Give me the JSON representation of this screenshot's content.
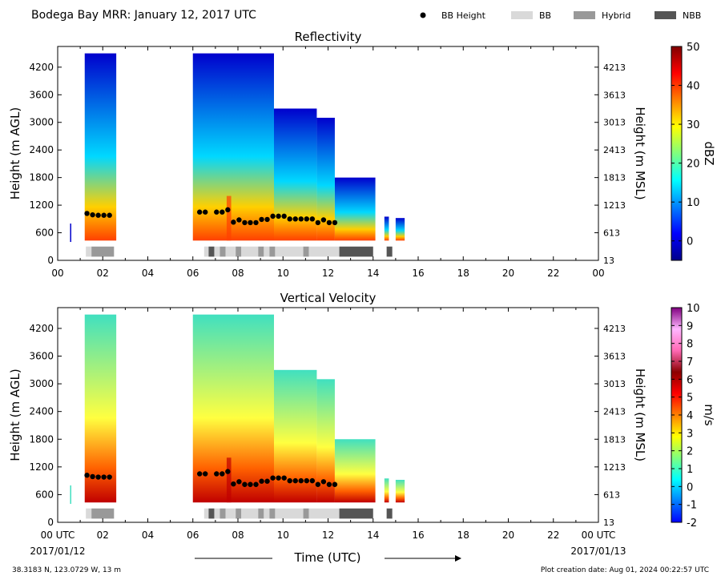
{
  "header": {
    "title": "Bodega Bay MRR:  January 12, 2017 UTC",
    "legend": [
      {
        "label": "BB Height",
        "kind": "dot",
        "color": "#000000"
      },
      {
        "label": "BB",
        "kind": "box",
        "color": "#d9d9d9"
      },
      {
        "label": "Hybrid",
        "kind": "box",
        "color": "#999999"
      },
      {
        "label": "NBB",
        "kind": "box",
        "color": "#555555"
      }
    ]
  },
  "footer": {
    "location": "38.3183 N, 123.0729 W, 13 m",
    "creation": "Plot creation date: Aug 01, 2024 00:22:57 UTC",
    "xlabel": "Time (UTC)",
    "start_date": "2017/01/12",
    "end_date": "2017/01/13"
  },
  "chart_data": [
    {
      "type": "heatmap",
      "title": "Reflectivity",
      "ylabel": "Height (m AGL)",
      "ylabel_right": "Height (m MSL)",
      "yticks": [
        0,
        600,
        1200,
        1800,
        2400,
        3000,
        3600,
        4200
      ],
      "yticks_right": [
        "13",
        "613",
        "1213",
        "1813",
        "2413",
        "3013",
        "3613",
        "4213"
      ],
      "xticks": [
        "00",
        "02",
        "04",
        "06",
        "08",
        "10",
        "12",
        "14",
        "16",
        "18",
        "20",
        "22",
        "00"
      ],
      "xlim": [
        0,
        24
      ],
      "ylim": [
        0,
        4650
      ],
      "colorbar": {
        "label": "dBZ",
        "min": -5,
        "max": 50,
        "ticks": [
          0,
          10,
          20,
          30,
          40,
          50
        ],
        "stops": [
          "#00008b",
          "#0000ff",
          "#0080ff",
          "#00ffff",
          "#7fff7f",
          "#ffff00",
          "#ff8000",
          "#ff0000",
          "#800000"
        ]
      },
      "colors": {
        "low": "#0000cd",
        "mid": "#00d8ff",
        "high": "#ffd000",
        "peak": "#ff4000"
      }
    },
    {
      "type": "heatmap",
      "title": "Vertical Velocity",
      "ylabel": "Height (m AGL)",
      "ylabel_right": "Height (m MSL)",
      "yticks": [
        0,
        600,
        1200,
        1800,
        2400,
        3000,
        3600,
        4200
      ],
      "yticks_right": [
        "13",
        "613",
        "1213",
        "1813",
        "2413",
        "3013",
        "3613",
        "4213"
      ],
      "xticks": [
        "00 UTC",
        "02",
        "04",
        "06",
        "08",
        "10",
        "12",
        "14",
        "16",
        "18",
        "20",
        "22",
        "00 UTC"
      ],
      "xlim": [
        0,
        24
      ],
      "ylim": [
        0,
        4650
      ],
      "colorbar": {
        "label": "m/s",
        "min": -2,
        "max": 10,
        "ticks": [
          -2,
          -1,
          0,
          1,
          2,
          3,
          4,
          5,
          6,
          7,
          8,
          9,
          10
        ],
        "stops": [
          "#0000ff",
          "#0080ff",
          "#00ffff",
          "#7fff7f",
          "#ffff00",
          "#ff8000",
          "#ff0000",
          "#8b0000",
          "#ff69b4",
          "#ffb6ff",
          "#800080"
        ]
      },
      "colors": {
        "low": "#40e0c0",
        "mid": "#ffff40",
        "high": "#ff6000",
        "peak": "#c00000"
      }
    }
  ],
  "bb_height": {
    "hours": [
      1.3,
      1.55,
      1.8,
      2.05,
      2.3,
      6.3,
      6.55,
      7.05,
      7.3,
      7.55,
      7.8,
      8.05,
      8.3,
      8.55,
      8.8,
      9.05,
      9.3,
      9.55,
      9.8,
      10.05,
      10.3,
      10.55,
      10.8,
      11.05,
      11.3,
      11.55,
      11.8,
      12.05,
      12.3
    ],
    "heights": [
      1020,
      990,
      980,
      980,
      980,
      1050,
      1050,
      1050,
      1050,
      1100,
      830,
      880,
      820,
      820,
      820,
      890,
      890,
      960,
      960,
      960,
      900,
      900,
      900,
      900,
      900,
      820,
      880,
      820,
      820
    ]
  },
  "bb_strip": [
    {
      "start": 1.25,
      "end": 1.5,
      "kind": "BB"
    },
    {
      "start": 1.5,
      "end": 2.5,
      "kind": "Hybrid"
    },
    {
      "start": 6.5,
      "end": 6.7,
      "kind": "BB"
    },
    {
      "start": 6.7,
      "end": 6.95,
      "kind": "NBB"
    },
    {
      "start": 6.95,
      "end": 7.2,
      "kind": "BB"
    },
    {
      "start": 7.2,
      "end": 7.45,
      "kind": "Hybrid"
    },
    {
      "start": 7.45,
      "end": 7.9,
      "kind": "BB"
    },
    {
      "start": 7.9,
      "end": 8.15,
      "kind": "Hybrid"
    },
    {
      "start": 8.15,
      "end": 8.9,
      "kind": "BB"
    },
    {
      "start": 8.9,
      "end": 9.15,
      "kind": "Hybrid"
    },
    {
      "start": 9.15,
      "end": 9.4,
      "kind": "BB"
    },
    {
      "start": 9.4,
      "end": 9.65,
      "kind": "Hybrid"
    },
    {
      "start": 9.65,
      "end": 10.9,
      "kind": "BB"
    },
    {
      "start": 10.9,
      "end": 11.15,
      "kind": "Hybrid"
    },
    {
      "start": 11.15,
      "end": 12.5,
      "kind": "BB"
    },
    {
      "start": 12.5,
      "end": 14.0,
      "kind": "NBB"
    },
    {
      "start": 14.6,
      "end": 14.85,
      "kind": "NBB"
    }
  ]
}
